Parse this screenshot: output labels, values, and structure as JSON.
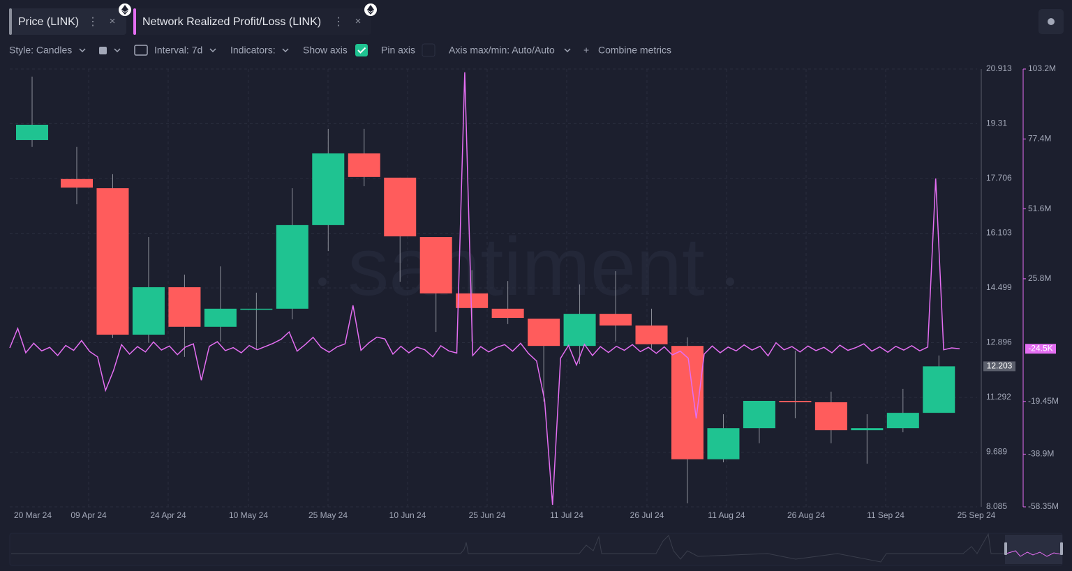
{
  "toolbar": {
    "style": "Style: Candles",
    "interval": "Interval: 7d",
    "indicators": "Indicators:",
    "show_axis": "Show axis",
    "pin_axis": "Pin axis",
    "axis_range": "Axis max/min: Auto/Auto",
    "combine": "Combine metrics"
  },
  "watermark": "santiment",
  "chart_data": {
    "type": "candlestick",
    "x_labels": [
      "20 Mar 24",
      "09 Apr 24",
      "24 Apr 24",
      "10 May 24",
      "25 May 24",
      "10 Jun 24",
      "25 Jun 24",
      "11 Jul 24",
      "26 Jul 24",
      "11 Aug 24",
      "26 Aug 24",
      "11 Sep 24",
      "25 Sep 24"
    ],
    "ylim": [
      8.085,
      20.913
    ],
    "yticks": [
      8.085,
      9.689,
      11.292,
      12.896,
      14.499,
      16.103,
      17.706,
      19.31,
      20.913
    ],
    "y2lim": [
      -58350000,
      103200000
    ],
    "y2ticks": [
      {
        "value": -58350000,
        "label": "-58.35M"
      },
      {
        "value": -38900000,
        "label": "-38.9M"
      },
      {
        "value": -19450000,
        "label": "-19.45M"
      },
      {
        "value": 25800000,
        "label": "25.8M"
      },
      {
        "value": 51600000,
        "label": "51.6M"
      },
      {
        "value": 77400000,
        "label": "77.4M"
      },
      {
        "value": 103200000,
        "label": "103.2M"
      }
    ],
    "grid": true,
    "series": [
      {
        "name": "Price (LINK)",
        "type": "candlestick",
        "up_color": "#1fc391",
        "down_color": "#ff5c5c",
        "open": [
          18.83,
          17.69,
          17.42,
          13.13,
          14.52,
          13.36,
          13.88,
          13.89,
          16.34,
          18.44,
          17.73,
          15.99,
          14.34,
          13.89,
          13.6,
          12.8,
          13.74,
          13.4,
          12.8,
          9.48,
          10.39,
          11.19,
          11.15,
          10.33,
          10.39,
          10.84
        ],
        "high": [
          20.69,
          18.63,
          17.83,
          15.99,
          14.89,
          15.13,
          14.36,
          17.42,
          19.16,
          19.16,
          17.73,
          15.99,
          15.02,
          14.7,
          13.6,
          14.6,
          14.99,
          13.89,
          13.05,
          10.8,
          11.19,
          12.66,
          11.46,
          10.8,
          11.54,
          12.52
        ],
        "low": [
          18.63,
          16.95,
          13.03,
          12.89,
          12.48,
          12.93,
          12.72,
          13.58,
          15.58,
          17.48,
          14.68,
          13.21,
          12.93,
          13.44,
          11.17,
          12.27,
          12.93,
          12.72,
          8.19,
          9.39,
          9.95,
          10.68,
          9.95,
          9.35,
          10.27,
          10.84
        ],
        "close": [
          19.28,
          17.44,
          13.13,
          14.52,
          13.36,
          13.89,
          13.89,
          16.34,
          18.44,
          17.75,
          16.01,
          14.34,
          13.91,
          13.62,
          12.8,
          13.74,
          13.4,
          12.85,
          9.48,
          10.39,
          11.19,
          11.15,
          10.33,
          10.39,
          10.84,
          12.203
        ],
        "last_value": 12.203
      },
      {
        "name": "Network Realized Profit/Loss (LINK)",
        "type": "line",
        "axis": "y2",
        "color": "#e46ef2",
        "values": [
          300000,
          7500000,
          -1500000,
          2000000,
          -800000,
          500000,
          -2500000,
          1200000,
          -600000,
          3000000,
          -1000000,
          -3000000,
          -15400000,
          -8000000,
          1500000,
          -2000000,
          800000,
          -1200000,
          2500000,
          -500000,
          1000000,
          -2200000,
          600000,
          1800000,
          -11600000,
          900000,
          2600000,
          -700000,
          400000,
          -1500000,
          1200000,
          -400000,
          800000,
          2000000,
          3500000,
          6200000,
          -900000,
          1500000,
          4200000,
          500000,
          -1300000,
          700000,
          1800000,
          16000000,
          -600000,
          2200000,
          4300000,
          3600000,
          -2000000,
          900000,
          -1500000,
          600000,
          -400000,
          -3000000,
          1100000,
          -800000,
          -1600000,
          102000000,
          -2500000,
          800000,
          -1200000,
          500000,
          1500000,
          -900000,
          2000000,
          -1800000,
          -4500000,
          -19000000,
          -57600000,
          -3500000,
          1200000,
          -6000000,
          1600000,
          -2500000,
          800000,
          -1400000,
          900000,
          -600000,
          1500000,
          -1100000,
          500000,
          -1700000,
          700000,
          -2300000,
          -900000,
          -3500000,
          -25700000,
          -2000000,
          1000000,
          -1500000,
          600000,
          -800000,
          1400000,
          -500000,
          900000,
          -2600000,
          2200000,
          -400000,
          800000,
          -1200000,
          1000000,
          -700000,
          500000,
          -1500000,
          1300000,
          -600000,
          400000,
          1800000,
          -900000,
          700000,
          -1300000,
          900000,
          -500000,
          1100000,
          -800000,
          600000,
          62800000,
          -400000,
          300000,
          -24500
        ],
        "last_value": {
          "value": -24500,
          "label": "-24.5K"
        }
      }
    ]
  }
}
